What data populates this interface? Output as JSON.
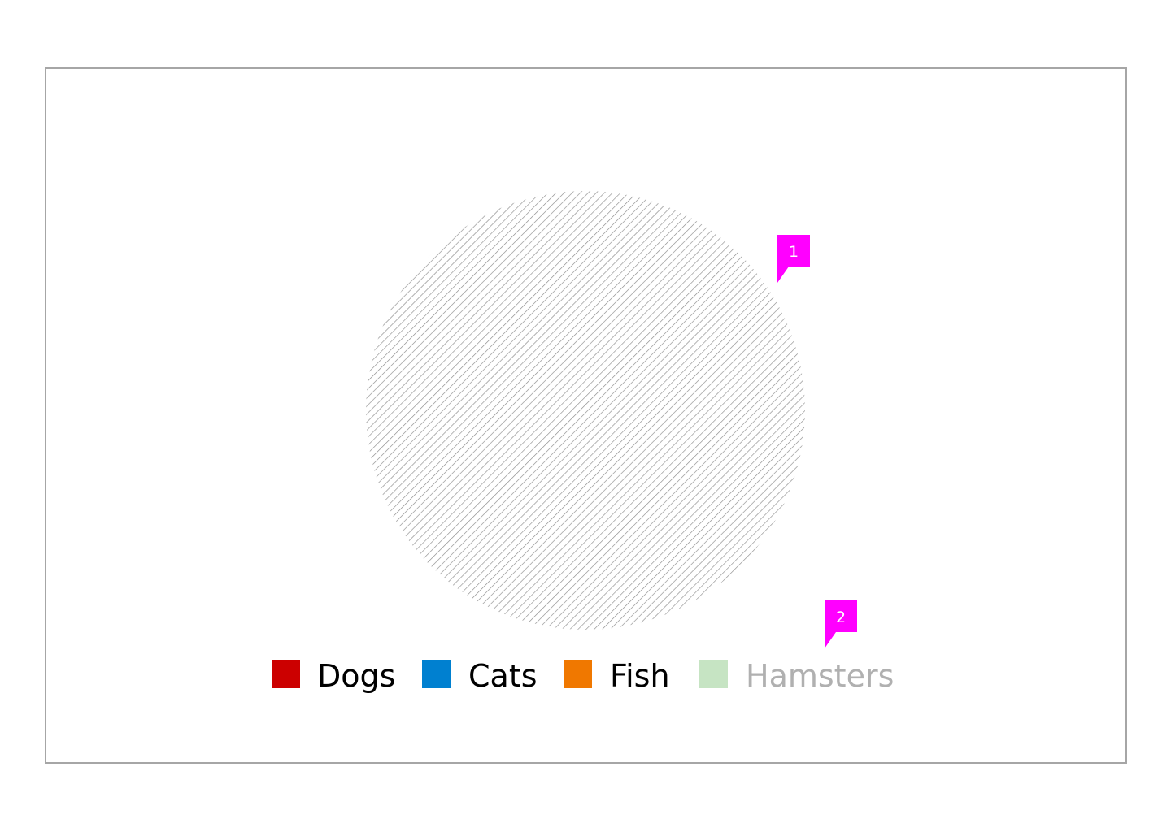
{
  "chart_data": {
    "type": "pie",
    "title": "",
    "series": [
      {
        "name": "Dogs",
        "color": "#cc0000",
        "hidden": false
      },
      {
        "name": "Cats",
        "color": "#0080d0",
        "hidden": false
      },
      {
        "name": "Fish",
        "color": "#f07800",
        "hidden": false
      },
      {
        "name": "Hamsters",
        "color": "#c6e4c3",
        "hidden": true
      }
    ],
    "display_state": "no data (hatched placeholder)",
    "legend_position": "bottom-center",
    "placeholder_color": "#8c8c8c",
    "hidden_label_color": "#b0b0b0",
    "label_color": "#000000"
  },
  "annotations": [
    {
      "label": "1",
      "color": "#ff00ff"
    },
    {
      "label": "2",
      "color": "#ff00ff"
    }
  ]
}
